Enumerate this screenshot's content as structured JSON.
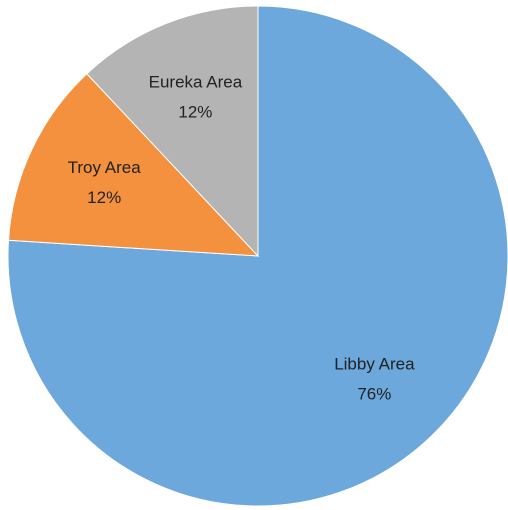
{
  "chart_data": {
    "type": "pie",
    "categories": [
      "Libby Area",
      "Troy Area",
      "Eureka Area"
    ],
    "values": [
      76,
      12,
      12
    ],
    "value_labels": [
      "76%",
      "12%",
      "12%"
    ],
    "colors": [
      "#6ca8db",
      "#f4913f",
      "#b4b4b4"
    ]
  }
}
